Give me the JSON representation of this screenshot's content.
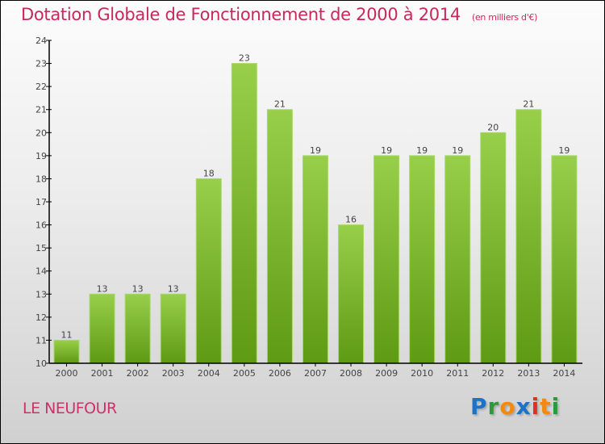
{
  "chart_data": {
    "type": "bar",
    "title": "Dotation Globale de Fonctionnement de 2000 à 2014",
    "subtitle": "(en milliers d'€)",
    "categories": [
      "2000",
      "2001",
      "2002",
      "2003",
      "2004",
      "2005",
      "2006",
      "2007",
      "2008",
      "2009",
      "2010",
      "2011",
      "2012",
      "2013",
      "2014"
    ],
    "values": [
      11,
      13,
      13,
      13,
      18,
      23,
      21,
      19,
      16,
      19,
      19,
      19,
      20,
      21,
      19
    ],
    "xlabel": "",
    "ylabel": "",
    "ylim": [
      10,
      24
    ],
    "yticks": [
      10,
      11,
      12,
      13,
      14,
      15,
      16,
      17,
      18,
      19,
      20,
      21,
      22,
      23,
      24
    ],
    "grid": false,
    "bar_color": "#7cb82f"
  },
  "commune": "LE NEUFOUR",
  "logo": {
    "letters": [
      "P",
      "r",
      "o",
      "x",
      "i",
      "t",
      "i"
    ],
    "colors": [
      "#1a73c9",
      "#2a9a3a",
      "#f08a10",
      "#1a73c9",
      "#e03020",
      "#f08a10",
      "#2a9a3a"
    ]
  }
}
